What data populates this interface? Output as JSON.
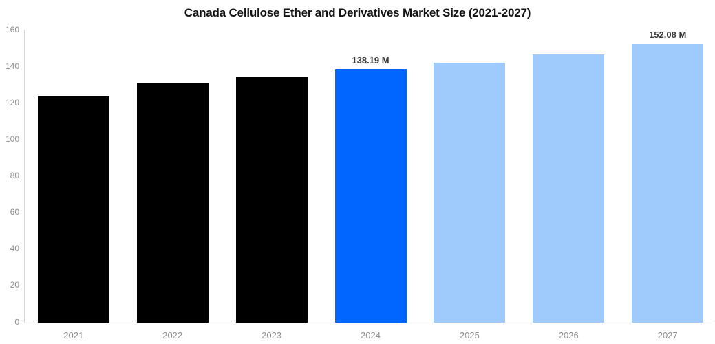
{
  "chart_data": {
    "type": "bar",
    "title": "Canada Cellulose Ether and Derivatives Market Size (2021-2027)",
    "categories": [
      "2021",
      "2022",
      "2023",
      "2024",
      "2025",
      "2026",
      "2027"
    ],
    "values": [
      124,
      131,
      134,
      138.19,
      142,
      146.5,
      152.08
    ],
    "data_labels": [
      null,
      null,
      null,
      "138.19 M",
      null,
      null,
      "152.08 M"
    ],
    "bar_colors": [
      "#000000",
      "#000000",
      "#000000",
      "#0066FF",
      "#9FCAFC",
      "#9FCAFC",
      "#9FCAFC"
    ],
    "color_meaning": {
      "historical": "#000000",
      "current_year": "#0066FF",
      "forecast": "#9FCAFC"
    },
    "unit": "M",
    "xlabel": "",
    "ylabel": "",
    "ylim": [
      0,
      160
    ],
    "yticks": [
      0,
      20,
      40,
      60,
      80,
      100,
      120,
      140,
      160
    ],
    "grid": false,
    "legend": "none",
    "axis_color": "#d6d6d6",
    "tick_label_color": "#8e8e8e",
    "value_label_color": "#3a3a3a",
    "title_color": "#141414",
    "background_color": "#ffffff"
  }
}
